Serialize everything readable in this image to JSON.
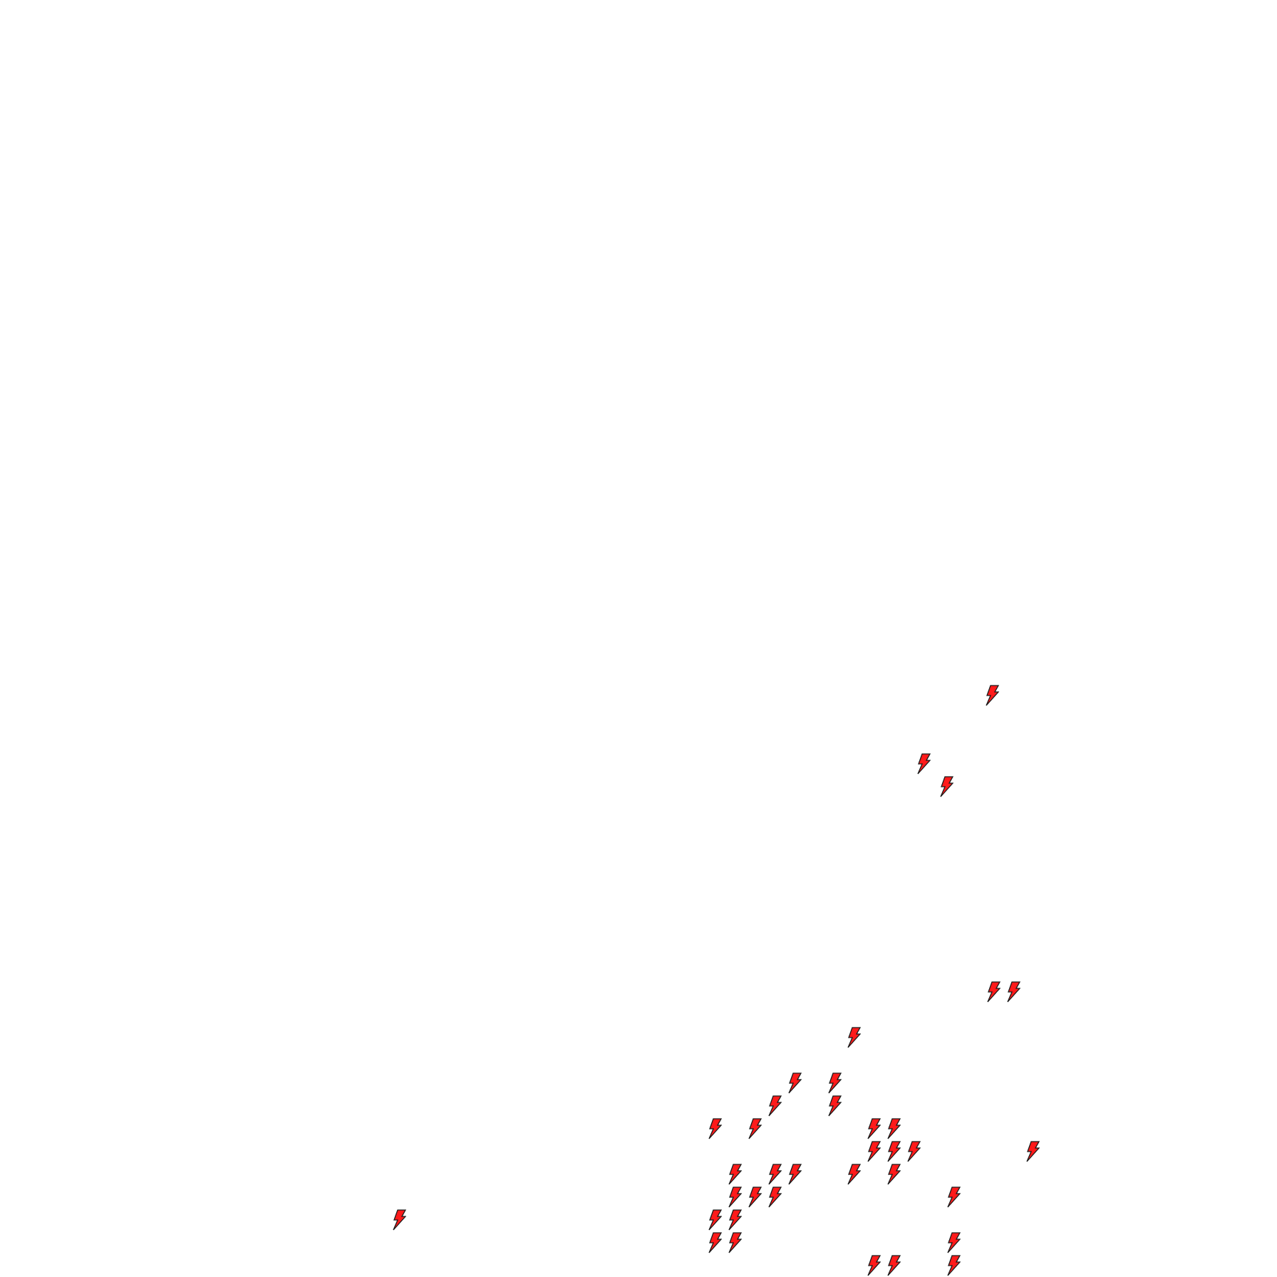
{
  "map": {
    "marker_icon": "lightning-bolt-icon",
    "marker_fill": "#ff1a1a",
    "marker_stroke": "#1a1a1a",
    "background": "#ffffff"
  }
}
